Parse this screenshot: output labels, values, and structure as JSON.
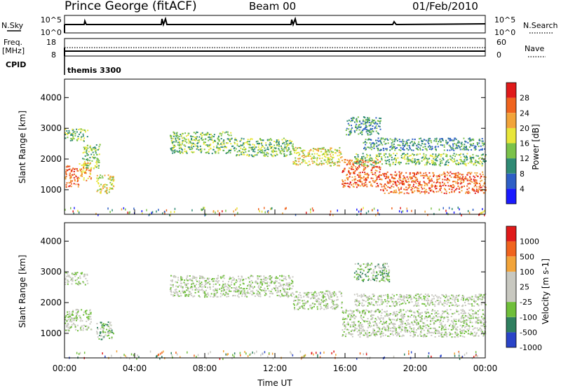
{
  "header": {
    "station": "Prince George (fitACF)",
    "beam": "Beam 00",
    "date": "01/Feb/2010"
  },
  "top_panels": {
    "nsky_label": "N.Sky",
    "nsky_ticks": [
      "10^5",
      "10^0"
    ],
    "nsearch_label": "N.Search",
    "nsearch_ticks": [
      "10^5",
      "10^0"
    ],
    "freq_label": "Freq.",
    "freq_unit": "[MHz]",
    "freq_ticks": [
      "18",
      "8"
    ],
    "nave_label": "Nave",
    "nave_ticks": [
      "60",
      "0"
    ],
    "cpid_label": "CPID",
    "cpid_value": "themis 3300"
  },
  "chart_data": [
    {
      "type": "heatmap",
      "name": "power",
      "ylabel": "Slant Range [km]",
      "yticks": [
        "4000",
        "3000",
        "2000",
        "1000"
      ],
      "ylim": [
        200,
        4600
      ],
      "xlim": [
        0,
        24
      ],
      "colorbar_label": "Power [dB]",
      "colorbar_ticks": [
        "28",
        "24",
        "20",
        "16",
        "12",
        "8",
        "4"
      ],
      "colors": [
        "#1a1aff",
        "#2e5fc6",
        "#2f8a74",
        "#7bc24a",
        "#e8e63a",
        "#f2a43a",
        "#f0641e",
        "#e01a1a"
      ],
      "regions": [
        {
          "t0": 0.0,
          "t1": 0.8,
          "r0": 1100,
          "r1": 1800,
          "level": 6
        },
        {
          "t0": 0.8,
          "t1": 1.5,
          "r0": 1300,
          "r1": 1900,
          "level": 5
        },
        {
          "t0": 0.0,
          "t1": 1.3,
          "r0": 2600,
          "r1": 3000,
          "level": 3
        },
        {
          "t0": 1.0,
          "t1": 2.0,
          "r0": 1700,
          "r1": 2500,
          "level": 3
        },
        {
          "t0": 1.8,
          "t1": 2.8,
          "r0": 900,
          "r1": 1500,
          "level": 4
        },
        {
          "t0": 6.0,
          "t1": 9.5,
          "r0": 2200,
          "r1": 2900,
          "level": 3
        },
        {
          "t0": 9.5,
          "t1": 13.0,
          "r0": 2100,
          "r1": 2700,
          "level": 3
        },
        {
          "t0": 13.0,
          "t1": 15.8,
          "r0": 1800,
          "r1": 2400,
          "level": 4
        },
        {
          "t0": 15.8,
          "t1": 18.0,
          "r0": 1100,
          "r1": 2000,
          "level": 6
        },
        {
          "t0": 18.0,
          "t1": 24.0,
          "r0": 900,
          "r1": 1600,
          "level": 6
        },
        {
          "t0": 16.5,
          "t1": 24.0,
          "r0": 1800,
          "r1": 2200,
          "level": 3
        },
        {
          "t0": 17.0,
          "t1": 24.0,
          "r0": 2300,
          "r1": 2700,
          "level": 2
        },
        {
          "t0": 16.0,
          "t1": 18.0,
          "r0": 2800,
          "r1": 3400,
          "level": 2
        }
      ]
    },
    {
      "type": "heatmap",
      "name": "velocity",
      "ylabel": "Slant Range [km]",
      "yticks": [
        "4000",
        "3000",
        "2000",
        "1000"
      ],
      "ylim": [
        200,
        4600
      ],
      "xlim": [
        0,
        24
      ],
      "colorbar_label": "Velocity [m s-1]",
      "colorbar_ticks": [
        "1000",
        "500",
        "100",
        "25",
        "-25",
        "-100",
        "-500",
        "-1000"
      ],
      "colors": [
        "#2a44c8",
        "#2f7f5f",
        "#6fbf3a",
        "#c8c8c0",
        "#c8c8c0",
        "#f2a43a",
        "#f0641e",
        "#e01a1a"
      ],
      "regions": [
        {
          "t0": 0.0,
          "t1": 1.5,
          "r0": 1100,
          "r1": 1800,
          "level": 3
        },
        {
          "t0": 1.8,
          "t1": 2.8,
          "r0": 800,
          "r1": 1400,
          "level": 2
        },
        {
          "t0": 0.0,
          "t1": 1.3,
          "r0": 2600,
          "r1": 3000,
          "level": 3
        },
        {
          "t0": 6.0,
          "t1": 13.0,
          "r0": 2200,
          "r1": 2900,
          "level": 3
        },
        {
          "t0": 13.0,
          "t1": 15.8,
          "r0": 1800,
          "r1": 2400,
          "level": 3
        },
        {
          "t0": 15.8,
          "t1": 24.0,
          "r0": 900,
          "r1": 1800,
          "level": 3
        },
        {
          "t0": 16.5,
          "t1": 24.0,
          "r0": 1900,
          "r1": 2300,
          "level": 3
        },
        {
          "t0": 16.5,
          "t1": 18.5,
          "r0": 2700,
          "r1": 3300,
          "level": 2
        }
      ]
    }
  ],
  "x_axis": {
    "ticks": [
      "00:00",
      "04:00",
      "08:00",
      "12:00",
      "16:00",
      "20:00",
      "00:00"
    ],
    "label": "Time UT"
  }
}
